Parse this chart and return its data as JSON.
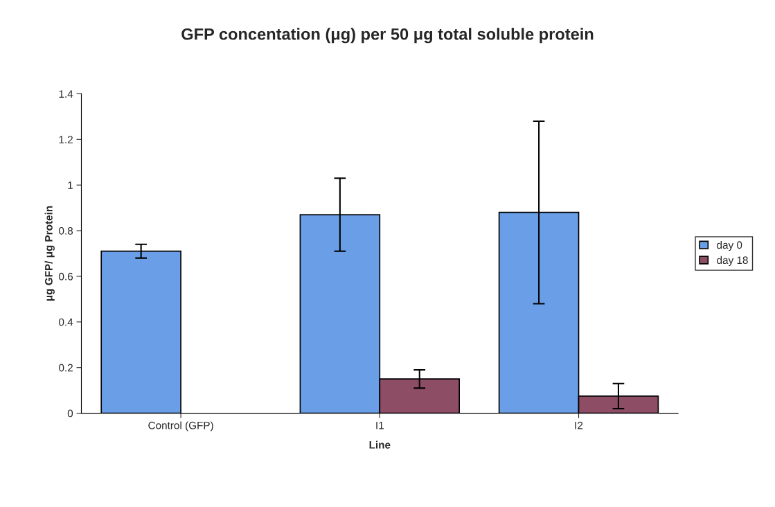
{
  "chart_data": {
    "type": "bar",
    "title": "GFP concentation (μg) per 50 μg total soluble protein",
    "xlabel": "Line",
    "ylabel": "μg GFP/ μg Protein",
    "categories": [
      "Control (GFP)",
      "I1",
      "I2"
    ],
    "series": [
      {
        "name": "day 0",
        "color": "#6a9ee6",
        "values": [
          0.71,
          0.87,
          0.88
        ],
        "errors": [
          0.03,
          0.16,
          0.4
        ]
      },
      {
        "name": "day 18",
        "color": "#8c4d65",
        "values": [
          null,
          0.15,
          0.075
        ],
        "errors": [
          null,
          0.04,
          0.055
        ]
      }
    ],
    "ylim": [
      0,
      1.4
    ],
    "yticks": [
      0,
      0.2,
      0.4,
      0.6,
      0.8,
      1,
      1.2,
      1.4
    ],
    "grid": false,
    "legend": "right"
  }
}
